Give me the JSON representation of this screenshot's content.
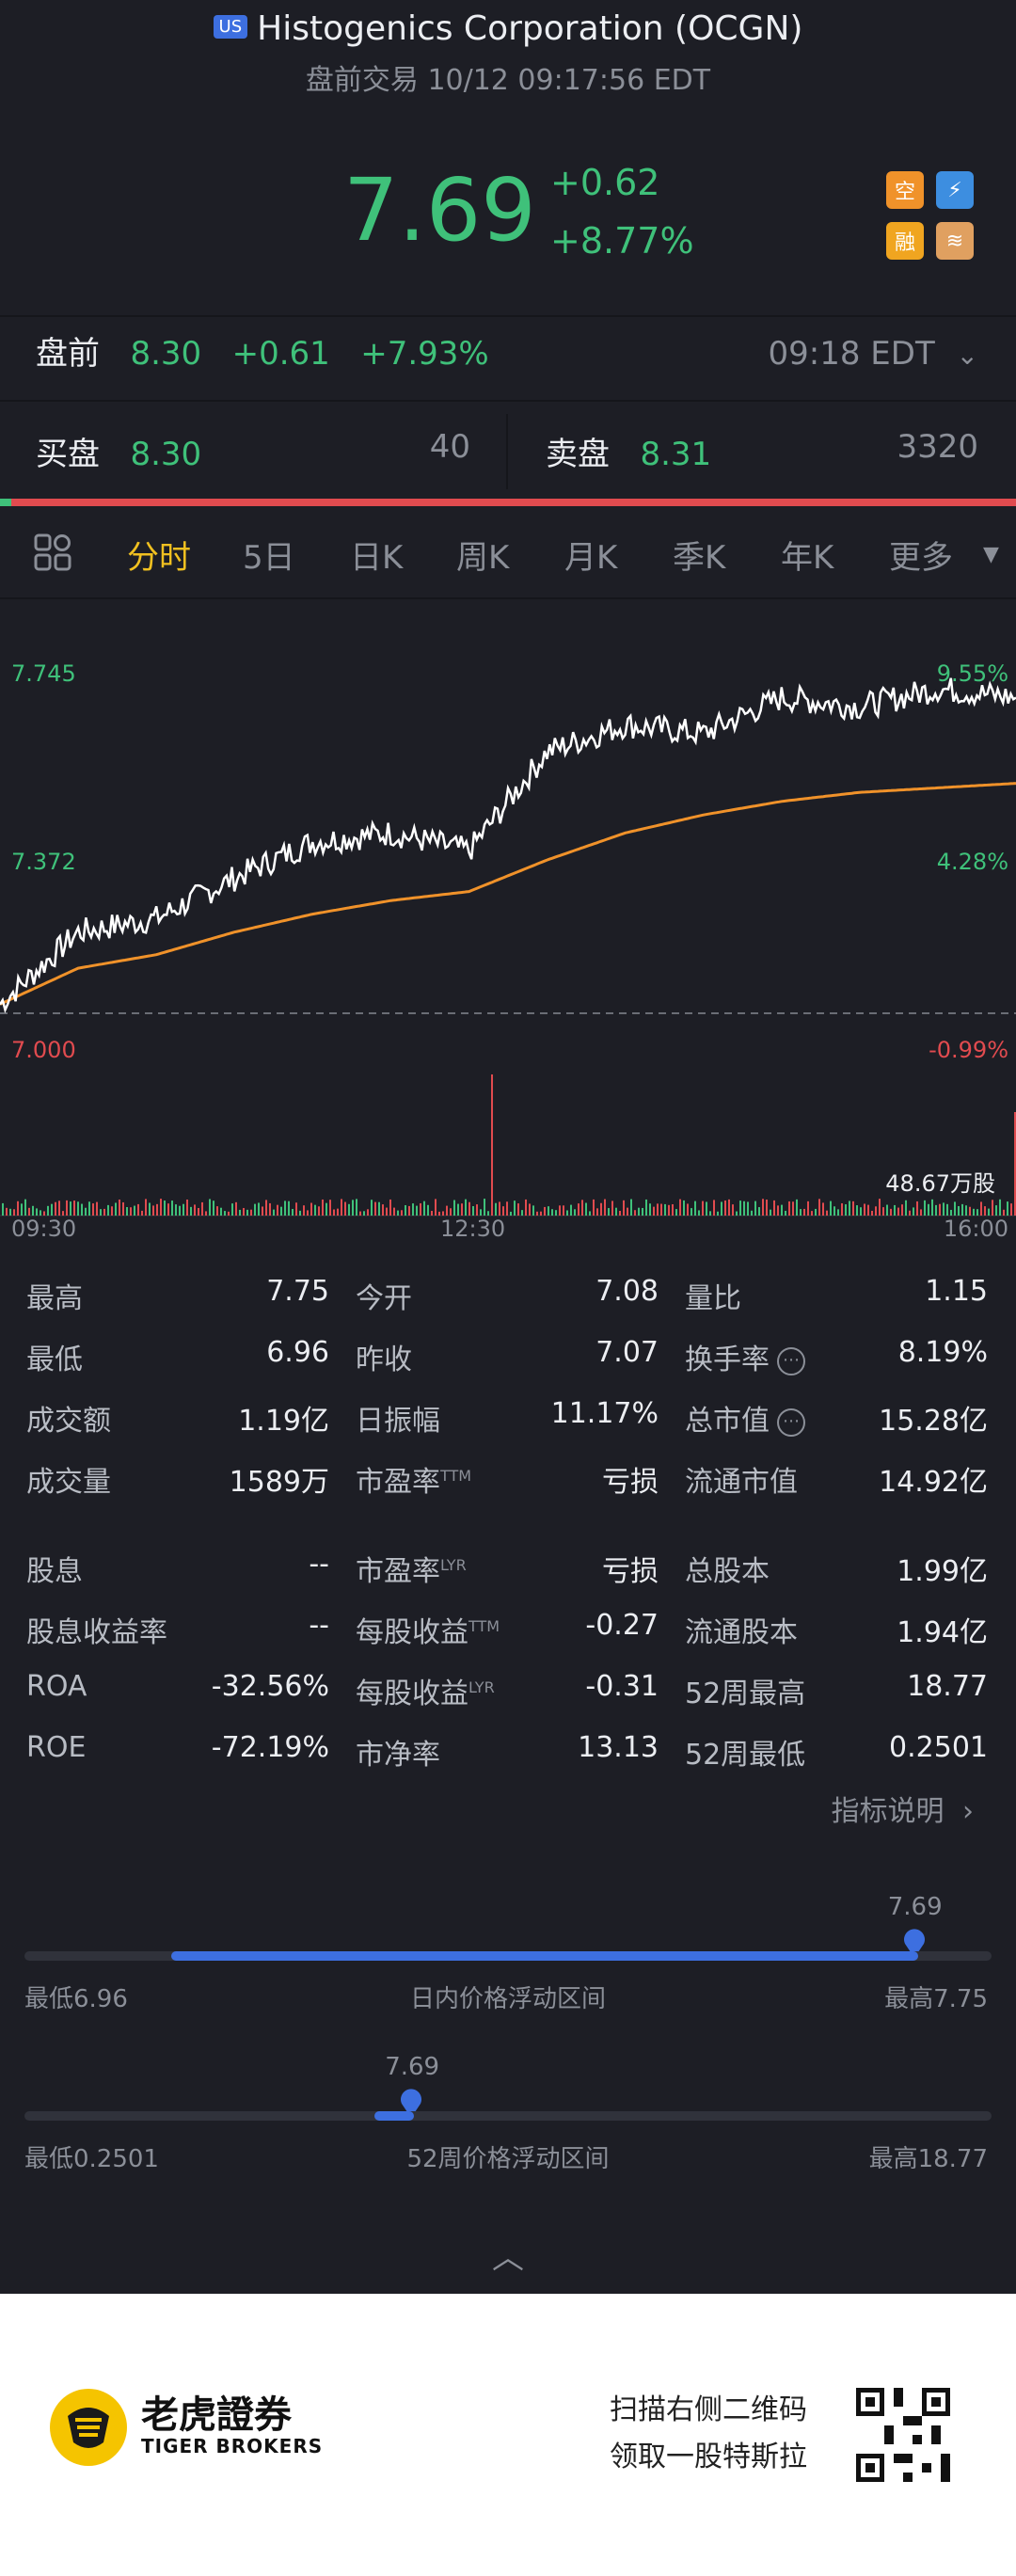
{
  "header": {
    "market_badge": "US",
    "title": "Histogenics Corporation (OCGN)",
    "subtitle": "盘前交易 10/12 09:17:56 EDT"
  },
  "quote": {
    "price": "7.69",
    "change": "+0.62",
    "change_pct": "+8.77%",
    "icons": [
      "short-sell-icon",
      "lightning-icon",
      "margin-icon",
      "education-icon"
    ]
  },
  "premarket": {
    "label": "盘前",
    "price": "8.30",
    "change": "+0.61",
    "change_pct": "+7.93%",
    "time": "09:18 EDT"
  },
  "orderbook": {
    "bid_label": "买盘",
    "bid_price": "8.30",
    "bid_size": "40",
    "ask_label": "卖盘",
    "ask_price": "8.31",
    "ask_size": "3320"
  },
  "tabs": [
    "分时",
    "5日",
    "日K",
    "周K",
    "月K",
    "季K",
    "年K",
    "更多"
  ],
  "active_tab": "分时",
  "chart": {
    "y_high": "7.745",
    "y_mid": "7.372",
    "y_low": "7.000",
    "pct_high": "9.55%",
    "pct_mid": "4.28%",
    "pct_low": "-0.99%",
    "volume_label": "48.67万股",
    "time_start": "09:30",
    "time_mid": "12:30",
    "time_end": "16:00"
  },
  "chart_data": {
    "type": "line",
    "x": [
      "09:30",
      "10:00",
      "10:30",
      "11:00",
      "11:30",
      "12:00",
      "12:30",
      "13:00",
      "13:30",
      "14:00",
      "14:30",
      "15:00",
      "15:30",
      "16:00"
    ],
    "series": [
      {
        "values": [
          7.02,
          7.18,
          7.21,
          7.3,
          7.38,
          7.4,
          7.36,
          7.58,
          7.64,
          7.62,
          7.7,
          7.68,
          7.72,
          7.7
        ]
      },
      {
        "values": [
          7.02,
          7.1,
          7.13,
          7.18,
          7.22,
          7.25,
          7.27,
          7.34,
          7.4,
          7.44,
          7.47,
          7.49,
          7.5,
          7.51
        ]
      }
    ],
    "ylim": [
      7.0,
      7.745
    ],
    "colors": {
      "price": "#ffffff",
      "avg": "#f0922a"
    }
  },
  "stats": {
    "rows1": [
      [
        [
          "最高",
          "7.75"
        ],
        [
          "今开",
          "7.08"
        ],
        [
          "量比",
          "1.15"
        ]
      ],
      [
        [
          "最低",
          "6.96"
        ],
        [
          "昨收",
          "7.07"
        ],
        [
          "换手率",
          "8.19%"
        ]
      ],
      [
        [
          "成交额",
          "1.19亿"
        ],
        [
          "日振幅",
          "11.17%"
        ],
        [
          "总市值",
          "15.28亿"
        ]
      ],
      [
        [
          "成交量",
          "1589万"
        ],
        [
          "市盈率",
          "亏损"
        ],
        [
          "流通市值",
          "14.92亿"
        ]
      ]
    ],
    "rows2": [
      [
        [
          "股息",
          "--"
        ],
        [
          "市盈率",
          "亏损"
        ],
        [
          "总股本",
          "1.99亿"
        ]
      ],
      [
        [
          "股息收益率",
          "--"
        ],
        [
          "每股收益",
          "-0.27"
        ],
        [
          "流通股本",
          "1.94亿"
        ]
      ],
      [
        [
          "ROA",
          "-32.56%"
        ],
        [
          "每股收益",
          "-0.31"
        ],
        [
          "52周最高",
          "18.77"
        ]
      ],
      [
        [
          "ROE",
          "-72.19%"
        ],
        [
          "市净率",
          "13.13"
        ],
        [
          "52周最低",
          "0.2501"
        ]
      ]
    ],
    "sup_ttm": "TTM",
    "sup_lyr": "LYR",
    "explain_link": "指标说明"
  },
  "day_range": {
    "marker_value": "7.69",
    "low_label": "最低6.96",
    "title": "日内价格浮动区间",
    "high_label": "最高7.75",
    "position": 0.92
  },
  "week52_range": {
    "marker_value": "7.69",
    "low_label": "最低0.2501",
    "title": "52周价格浮动区间",
    "high_label": "最高18.77",
    "position": 0.4
  },
  "footer": {
    "brand_cn": "老虎證券",
    "brand_en": "TIGER BROKERS",
    "promo_line1": "扫描右侧二维码",
    "promo_line2": "领取一股特斯拉"
  }
}
